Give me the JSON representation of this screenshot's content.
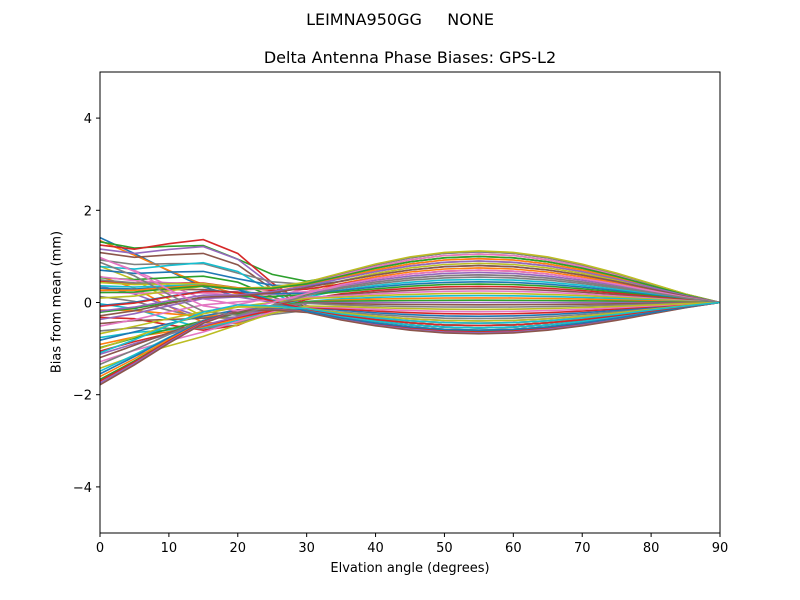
{
  "figure": {
    "suptitle": "LEIMNA950GG     NONE",
    "title": "Delta Antenna Phase Biases: GPS-L2",
    "xlabel": "Elvation angle (degrees)",
    "ylabel": "Bias from mean (mm)"
  },
  "chart_data": {
    "type": "line",
    "title": "Delta Antenna Phase Biases: GPS-L2",
    "suptitle": "LEIMNA950GG     NONE",
    "xlabel": "Elvation angle (degrees)",
    "ylabel": "Bias from mean (mm)",
    "xlim": [
      0,
      90
    ],
    "ylim": [
      -5,
      5
    ],
    "xticks": [
      0,
      10,
      20,
      30,
      40,
      50,
      60,
      70,
      80,
      90
    ],
    "yticks": [
      -4,
      -2,
      0,
      2,
      4
    ],
    "grid": false,
    "legend": "none",
    "x": [
      0,
      5,
      10,
      15,
      20,
      25,
      30,
      35,
      40,
      45,
      50,
      55,
      60,
      65,
      70,
      75,
      80,
      85,
      90
    ],
    "colors": [
      "#1f77b4",
      "#ff7f0e",
      "#2ca02c",
      "#d62728",
      "#9467bd",
      "#8c564b",
      "#e377c2",
      "#7f7f7f",
      "#bcbd22",
      "#17becf"
    ],
    "series_count": 60,
    "series_note": "Each series s (0..59) is defined by its start value at 0°, a mid-elevation hump and a low-elevation hump; all converge to 0 at 90°.",
    "series_params": {
      "start": [
        1.42,
        1.35,
        1.28,
        1.2,
        1.12,
        1.05,
        0.98,
        0.9,
        0.82,
        0.75,
        0.68,
        0.6,
        0.52,
        0.45,
        0.38,
        0.3,
        0.22,
        0.15,
        0.08,
        0.0,
        -0.08,
        -0.15,
        -0.22,
        -0.3,
        -0.38,
        -0.45,
        -0.52,
        -0.6,
        -0.68,
        -0.75,
        -0.82,
        -0.9,
        -0.98,
        -1.05,
        -1.12,
        -1.2,
        -1.28,
        -1.35,
        -1.42,
        -1.5,
        -1.56,
        -1.62,
        -1.68,
        -1.72,
        -1.76,
        -1.8,
        0.55,
        0.48,
        0.42,
        0.35,
        0.3,
        0.25,
        0.2,
        -0.1,
        -0.2,
        -0.3,
        1.0,
        0.9,
        -1.0,
        -1.1
      ],
      "low_hump": [
        -0.3,
        -0.2,
        0.9,
        1.1,
        0.95,
        0.8,
        -0.4,
        0.6,
        -0.8,
        0.7,
        0.5,
        -0.85,
        0.45,
        0.3,
        -0.6,
        0.2,
        0.15,
        -0.5,
        0.4,
        -0.7,
        0.35,
        -0.3,
        0.25,
        -0.6,
        0.3,
        -0.2,
        0.2,
        -0.4,
        0.1,
        -0.3,
        0.05,
        -0.2,
        0.0,
        -0.1,
        -0.05,
        0.1,
        -0.15,
        0.2,
        -0.2,
        0.25,
        0.3,
        0.3,
        0.3,
        0.35,
        0.35,
        0.35,
        0.2,
        0.25,
        0.3,
        0.3,
        0.3,
        0.35,
        0.35,
        0.35,
        0.3,
        0.3,
        -0.6,
        -0.7,
        0.2,
        0.3
      ],
      "mid_hump": [
        1.1,
        1.05,
        1.0,
        -0.5,
        -0.45,
        -0.55,
        0.95,
        0.9,
        0.85,
        -0.6,
        0.8,
        0.75,
        -0.5,
        0.7,
        0.65,
        -0.55,
        0.6,
        0.55,
        -0.5,
        0.5,
        0.45,
        -0.45,
        0.4,
        0.35,
        -0.4,
        0.3,
        0.25,
        -0.35,
        0.2,
        0.15,
        -0.3,
        0.1,
        0.05,
        -0.25,
        0.0,
        -0.05,
        -0.2,
        -0.1,
        -0.15,
        -0.5,
        -0.55,
        -0.6,
        -0.62,
        -0.64,
        -0.66,
        -0.68,
        1.05,
        1.1,
        1.12,
        -0.55,
        -0.6,
        0.95,
        1.0,
        -0.5,
        0.9,
        0.8,
        0.7,
        0.6,
        -0.4,
        -0.45
      ]
    }
  }
}
